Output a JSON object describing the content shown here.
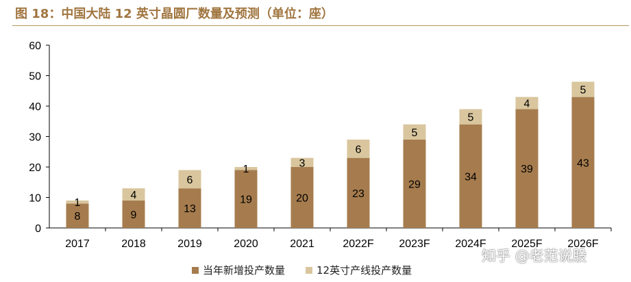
{
  "header": {
    "title": "图 18：中国大陆 12 英寸晶圆厂数量及预测（单位：座）"
  },
  "colors": {
    "title": "#a0753f",
    "series_1": "#a67c4e",
    "series_2": "#d9c69e",
    "axis": "#000000"
  },
  "chart_data": {
    "type": "bar",
    "stacked": true,
    "categories": [
      "2017",
      "2018",
      "2019",
      "2020",
      "2021",
      "2022F",
      "2023F",
      "2024F",
      "2025F",
      "2026F"
    ],
    "series": [
      {
        "name": "当年新增投产数量",
        "values": [
          8,
          9,
          13,
          19,
          20,
          23,
          29,
          34,
          39,
          43
        ]
      },
      {
        "name": "12英寸产线投产数量",
        "values": [
          1,
          4,
          6,
          1,
          3,
          6,
          5,
          5,
          4,
          5
        ]
      }
    ],
    "ylim": [
      0,
      60
    ],
    "yticks": [
      0,
      10,
      20,
      30,
      40,
      50,
      60
    ],
    "grid": false,
    "legend_position": "bottom",
    "data_labels": true
  },
  "watermark": {
    "text": "知乎 @老范说股"
  }
}
